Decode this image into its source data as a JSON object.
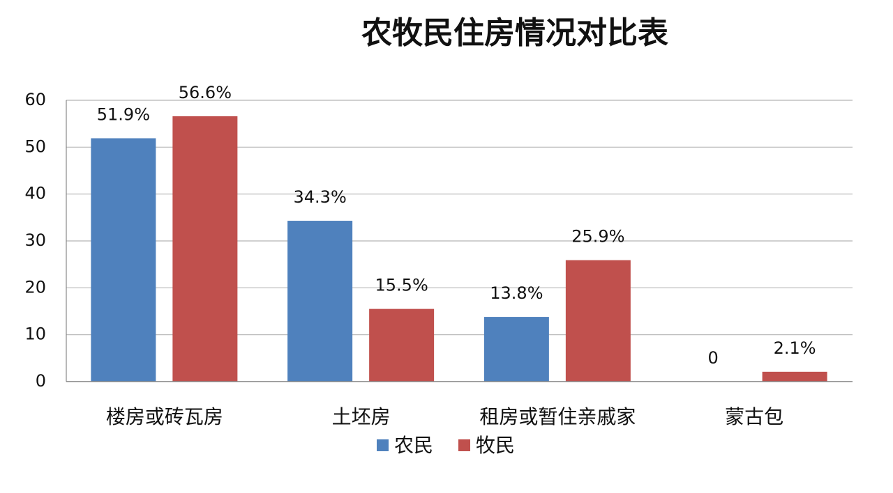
{
  "chart_data": {
    "type": "bar",
    "title": "农牧民住房情况对比表",
    "categories": [
      "楼房或砖瓦房",
      "土坯房",
      "租房或暂住亲戚家",
      "蒙古包"
    ],
    "series": [
      {
        "name": "农民",
        "color": "#4f81bd",
        "values": [
          51.9,
          34.3,
          13.8,
          0
        ],
        "value_labels": [
          "51.9%",
          "34.3%",
          "13.8%",
          "0"
        ]
      },
      {
        "name": "牧民",
        "color": "#c0504d",
        "values": [
          56.6,
          15.5,
          25.9,
          2.1
        ],
        "value_labels": [
          "56.6%",
          "15.5%",
          "25.9%",
          "2.1%"
        ]
      }
    ],
    "ylim": [
      0,
      60
    ],
    "yticks": [
      0,
      10,
      20,
      30,
      40,
      50,
      60
    ],
    "grid": true,
    "legend": "bottom"
  }
}
